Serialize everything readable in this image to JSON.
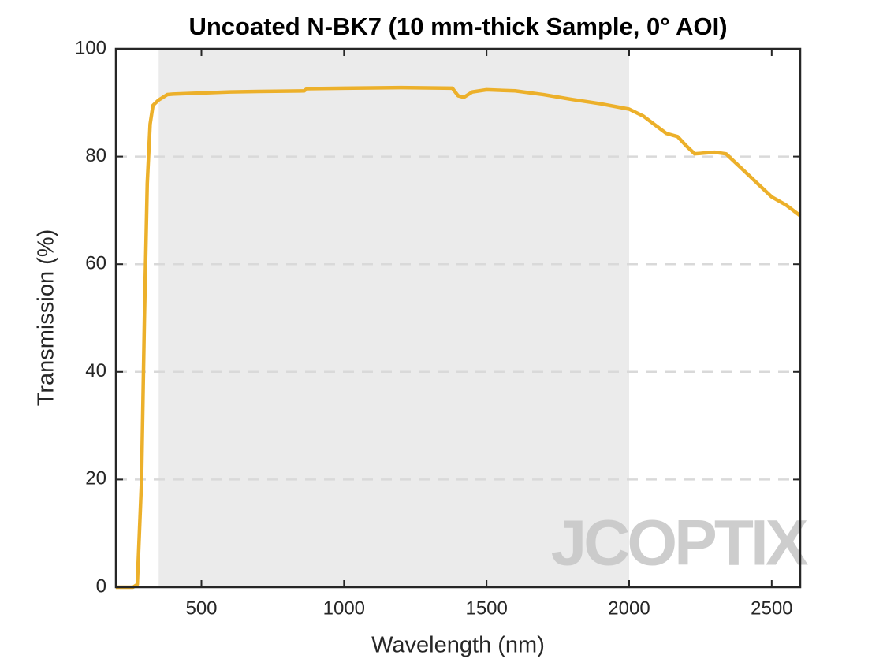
{
  "chart_data": {
    "type": "line",
    "title": "Uncoated N-BK7 (10 mm-thick Sample, 0° AOI)",
    "xlabel": "Wavelength (nm)",
    "ylabel": "Transmission (%)",
    "x": [
      200,
      260,
      275,
      290,
      300,
      310,
      320,
      330,
      350,
      380,
      400,
      500,
      600,
      700,
      860,
      870,
      1000,
      1200,
      1380,
      1400,
      1420,
      1450,
      1500,
      1600,
      1700,
      1800,
      1900,
      2000,
      2050,
      2100,
      2130,
      2170,
      2200,
      2230,
      2300,
      2340,
      2400,
      2450,
      2500,
      2550,
      2600
    ],
    "values": [
      0,
      0,
      0.5,
      20,
      50,
      75,
      86,
      89.5,
      90.5,
      91.5,
      91.6,
      91.8,
      92,
      92.1,
      92.2,
      92.6,
      92.7,
      92.8,
      92.7,
      91.3,
      91.0,
      92.0,
      92.4,
      92.2,
      91.5,
      90.6,
      89.8,
      88.8,
      87.5,
      85.5,
      84.3,
      83.7,
      82,
      80.5,
      80.8,
      80.5,
      77.5,
      75,
      72.5,
      71,
      69
    ],
    "color": "#ecb02a",
    "shaded_range": [
      350,
      2000
    ],
    "xlim": [
      200,
      2600
    ],
    "xticks": [
      500,
      1000,
      1500,
      2000,
      2500
    ],
    "ylim": [
      0,
      100
    ],
    "yticks": [
      0,
      20,
      40,
      60,
      80,
      100
    ],
    "grid": true,
    "watermark": "JCOPTIX"
  }
}
